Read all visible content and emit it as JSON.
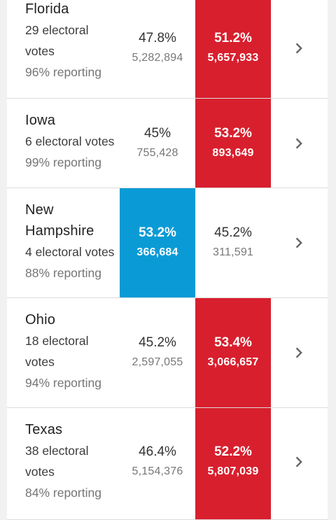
{
  "colors": {
    "dem_win": "#0a9bd6",
    "rep_win": "#d81f2d"
  },
  "icons": {
    "row_chevron": "chevron-right-icon"
  },
  "states": [
    {
      "name": "Florida",
      "ev_line1": "29 electoral",
      "ev_line2": "votes",
      "reporting": "96% reporting",
      "dem": {
        "pct": "47.8%",
        "votes": "5,282,894"
      },
      "rep": {
        "pct": "51.2%",
        "votes": "5,657,933"
      },
      "winner": "rep"
    },
    {
      "name": "Iowa",
      "ev_line1": "6 electoral votes",
      "ev_line2": "",
      "reporting": "99% reporting",
      "dem": {
        "pct": "45%",
        "votes": "755,428"
      },
      "rep": {
        "pct": "53.2%",
        "votes": "893,649"
      },
      "winner": "rep"
    },
    {
      "name_line1": "New",
      "name_line2": "Hampshire",
      "ev_line1": "4 electoral votes",
      "ev_line2": "",
      "reporting": "88% reporting",
      "dem": {
        "pct": "53.2%",
        "votes": "366,684"
      },
      "rep": {
        "pct": "45.2%",
        "votes": "311,591"
      },
      "winner": "dem"
    },
    {
      "name": "Ohio",
      "ev_line1": "18 electoral",
      "ev_line2": "votes",
      "reporting": "94% reporting",
      "dem": {
        "pct": "45.2%",
        "votes": "2,597,055"
      },
      "rep": {
        "pct": "53.4%",
        "votes": "3,066,657"
      },
      "winner": "rep"
    },
    {
      "name": "Texas",
      "ev_line1": "38 electoral",
      "ev_line2": "votes",
      "reporting": "84% reporting",
      "dem": {
        "pct": "46.4%",
        "votes": "5,154,376"
      },
      "rep": {
        "pct": "52.2%",
        "votes": "5,807,039"
      },
      "winner": "rep"
    }
  ]
}
